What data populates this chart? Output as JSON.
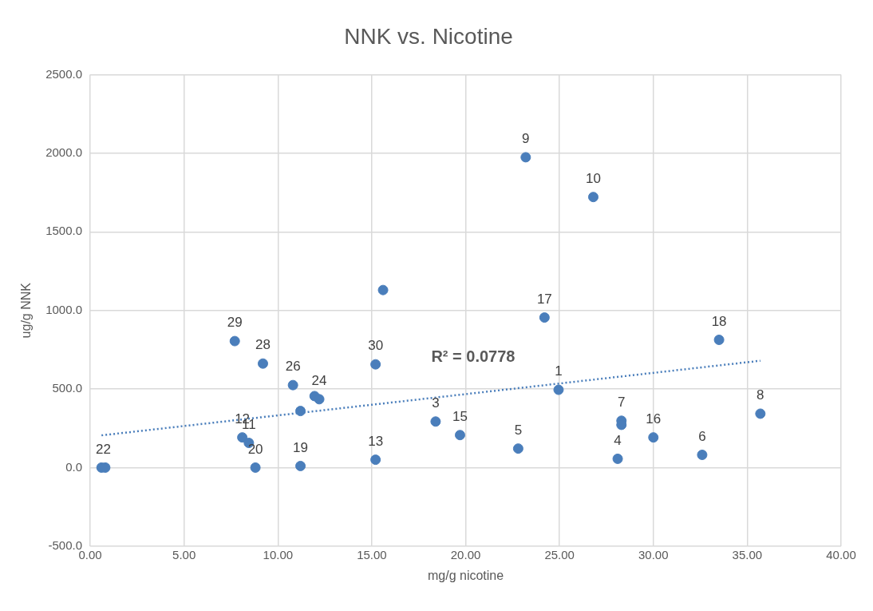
{
  "chart_data": {
    "type": "scatter",
    "title": "NNK vs. Nicotine",
    "xlabel": "mg/g nicotine",
    "ylabel": "ug/g NNK",
    "xlim": [
      0,
      40
    ],
    "xticks": [
      {
        "value": 0,
        "label": "0.00"
      },
      {
        "value": 5,
        "label": "5.00"
      },
      {
        "value": 10,
        "label": "10.00"
      },
      {
        "value": 15,
        "label": "15.00"
      },
      {
        "value": 20,
        "label": "20.00"
      },
      {
        "value": 25,
        "label": "25.00"
      },
      {
        "value": 30,
        "label": "30.00"
      },
      {
        "value": 35,
        "label": "35.00"
      },
      {
        "value": 40,
        "label": "40.00"
      }
    ],
    "ylim": [
      -500,
      2500
    ],
    "yticks": [
      {
        "value": -500,
        "label": "-500.0"
      },
      {
        "value": 0,
        "label": "0.0"
      },
      {
        "value": 500,
        "label": "500.0"
      },
      {
        "value": 1000,
        "label": "1000.0"
      },
      {
        "value": 1500,
        "label": "1500.0"
      },
      {
        "value": 2000,
        "label": "2000.0"
      },
      {
        "value": 2500,
        "label": "2500.0"
      }
    ],
    "grid": true,
    "legend": false,
    "marker": "circle",
    "series": [
      {
        "color": "#4a7ebb",
        "x": [
          0.6,
          0.8,
          7.7,
          9.2,
          10.8,
          11.95,
          12.2,
          11.2,
          8.1,
          8.45,
          8.8,
          11.2,
          15.2,
          15.2,
          15.6,
          18.4,
          19.7,
          22.8,
          24.95,
          24.2,
          23.2,
          26.8,
          28.3,
          28.3,
          28.1,
          30.0,
          32.6,
          33.5,
          35.7
        ],
        "values": [
          0,
          0,
          805,
          662,
          525,
          455,
          435,
          360,
          192,
          157,
          0,
          10,
          50,
          657,
          1130,
          293,
          207,
          121,
          495,
          955,
          1975,
          1722,
          298,
          272,
          56,
          192,
          81,
          813,
          343
        ]
      },
      {
        "type": "line",
        "color": "#4a7ebb",
        "line_style": "dotted",
        "marker": "none",
        "x": [
          0.6,
          35.7
        ],
        "values": [
          205,
          680
        ]
      }
    ],
    "annotations": [
      {
        "text": "22",
        "x": 0.7,
        "y": 0
      },
      {
        "text": "29",
        "x": 7.7,
        "y": 805
      },
      {
        "text": "28",
        "x": 9.2,
        "y": 662
      },
      {
        "text": "26",
        "x": 10.8,
        "y": 525
      },
      {
        "text": "24",
        "x": 12.2,
        "y": 435
      },
      {
        "text": "12",
        "x": 8.1,
        "y": 192
      },
      {
        "text": "11",
        "x": 8.45,
        "y": 157
      },
      {
        "text": "20",
        "x": 8.8,
        "y": 0
      },
      {
        "text": "19",
        "x": 11.2,
        "y": 10
      },
      {
        "text": "13",
        "x": 15.2,
        "y": 50
      },
      {
        "text": "30",
        "x": 15.2,
        "y": 657
      },
      {
        "text": "3",
        "x": 18.4,
        "y": 293
      },
      {
        "text": "15",
        "x": 19.7,
        "y": 207
      },
      {
        "text": "5",
        "x": 22.8,
        "y": 121
      },
      {
        "text": "1",
        "x": 24.95,
        "y": 495
      },
      {
        "text": "17",
        "x": 24.2,
        "y": 955
      },
      {
        "text": "9",
        "x": 23.2,
        "y": 1975
      },
      {
        "text": "10",
        "x": 26.8,
        "y": 1722
      },
      {
        "text": "7",
        "x": 28.3,
        "y": 298
      },
      {
        "text": "4",
        "x": 28.1,
        "y": 56
      },
      {
        "text": "16",
        "x": 30.0,
        "y": 192
      },
      {
        "text": "6",
        "x": 32.6,
        "y": 81
      },
      {
        "text": "18",
        "x": 33.5,
        "y": 813
      },
      {
        "text": "8",
        "x": 35.7,
        "y": 343
      },
      "R² = 0.0778"
    ]
  }
}
